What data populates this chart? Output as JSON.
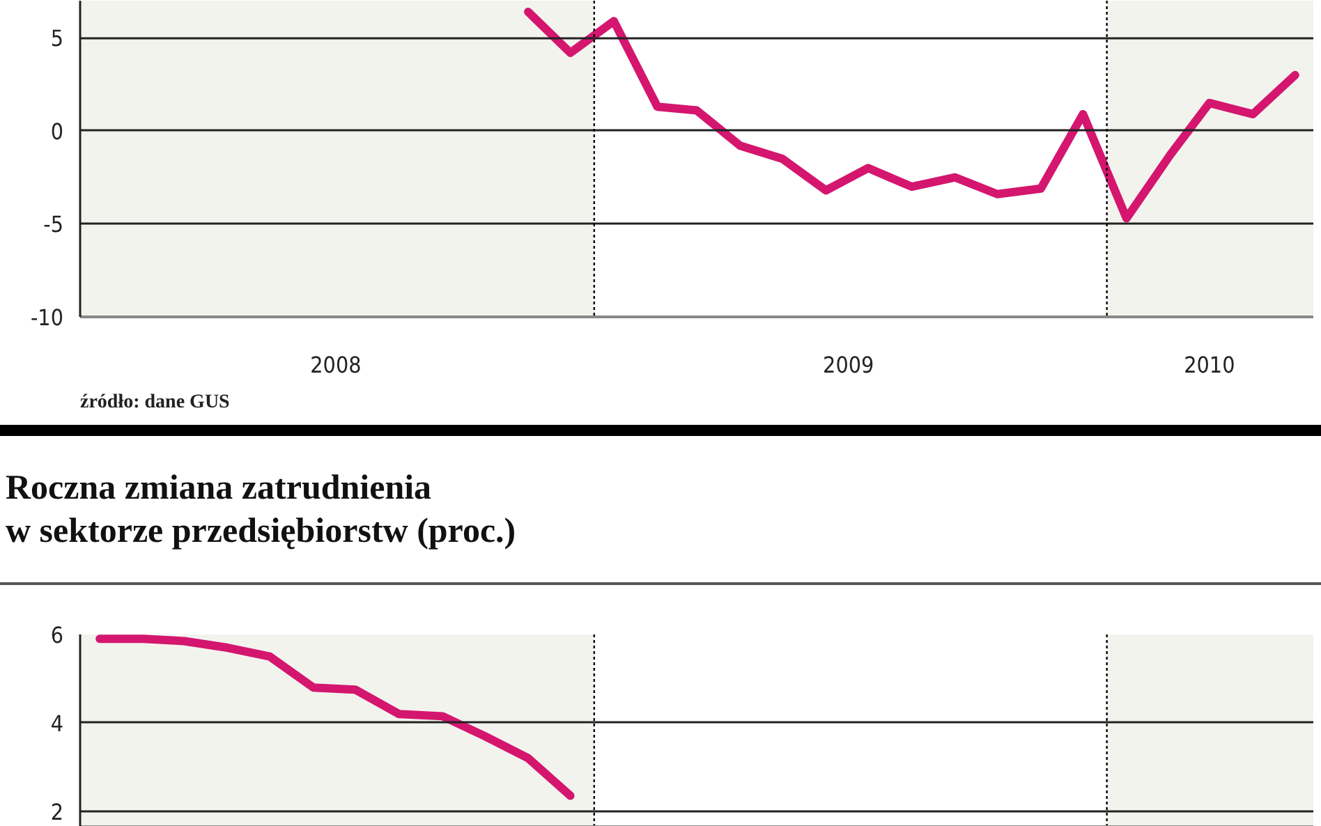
{
  "chart_data": [
    {
      "type": "line",
      "x": [
        "2008-11-15",
        "2008-12-15",
        "2009-01-15",
        "2009-02-15",
        "2009-03-15",
        "2009-04-15",
        "2009-05-15",
        "2009-06-15",
        "2009-07-15",
        "2009-08-15",
        "2009-09-15",
        "2009-10-15",
        "2009-11-15",
        "2009-12-15",
        "2010-01-15",
        "2010-02-15",
        "2010-03-15",
        "2010-04-15",
        "2010-05-15"
      ],
      "series": [
        {
          "color": "#d4166f",
          "values": [
            6.4,
            4.2,
            5.9,
            1.3,
            1.1,
            -0.8,
            -1.5,
            -3.2,
            -2.0,
            -3.0,
            -2.5,
            -3.4,
            -3.1,
            0.9,
            -4.7,
            -1.3,
            1.5,
            0.9,
            3.0
          ]
        }
      ],
      "xlim": [
        "2008-01-01",
        "2010-05-28"
      ],
      "ylim": [
        -10,
        7
      ],
      "xticks": [
        {
          "value": "2008-07-01",
          "label": "2008"
        },
        {
          "value": "2009-07-01",
          "label": "2009"
        },
        {
          "value": "2010-03-15",
          "label": "2010"
        }
      ],
      "yticks": [
        -10,
        -5,
        0,
        5
      ],
      "grid": "y",
      "line_style": "solid",
      "marker": "none",
      "ref_lines": [
        {
          "axis": "x",
          "value": "2009-01-01",
          "line_style": "dotted"
        },
        {
          "axis": "x",
          "value": "2010-01-01",
          "line_style": "dotted"
        }
      ],
      "bands": [
        {
          "axis": "x",
          "from": "2008-01-01",
          "to": "2009-01-01",
          "color": "#f3f3ee"
        },
        {
          "axis": "x",
          "from": "2010-01-01",
          "to": "2010-05-28",
          "color": "#f3f3ee"
        }
      ],
      "annotations": [
        "źródło: dane GUS"
      ]
    },
    {
      "type": "line",
      "title": "Roczna zmiana zatrudnienia\nw sektorze przedsiębiorstw (proc.)",
      "x": [
        "2008-01-15",
        "2008-02-15",
        "2008-03-15",
        "2008-04-15",
        "2008-05-15",
        "2008-06-15",
        "2008-07-15",
        "2008-08-15",
        "2008-09-15",
        "2008-10-15",
        "2008-11-15",
        "2008-12-15"
      ],
      "series": [
        {
          "color": "#d4166f",
          "values": [
            5.9,
            5.9,
            5.85,
            5.7,
            5.5,
            4.8,
            4.75,
            4.2,
            4.15,
            3.7,
            3.2,
            2.35
          ]
        }
      ],
      "xlim": [
        "2008-01-01",
        "2010-05-28"
      ],
      "ylim": [
        1.65,
        6
      ],
      "yticks": [
        2,
        4,
        6
      ],
      "grid": "y",
      "line_style": "solid",
      "marker": "none",
      "tick_labels": "y",
      "ref_lines": [
        {
          "axis": "x",
          "value": "2009-01-01",
          "line_style": "dotted"
        },
        {
          "axis": "x",
          "value": "2010-01-01",
          "line_style": "dotted"
        }
      ],
      "bands": [
        {
          "axis": "x",
          "from": "2008-01-01",
          "to": "2009-01-01",
          "color": "#f3f3ee"
        },
        {
          "axis": "x",
          "from": "2010-01-01",
          "to": "2010-05-28",
          "color": "#f3f3ee"
        }
      ]
    }
  ]
}
